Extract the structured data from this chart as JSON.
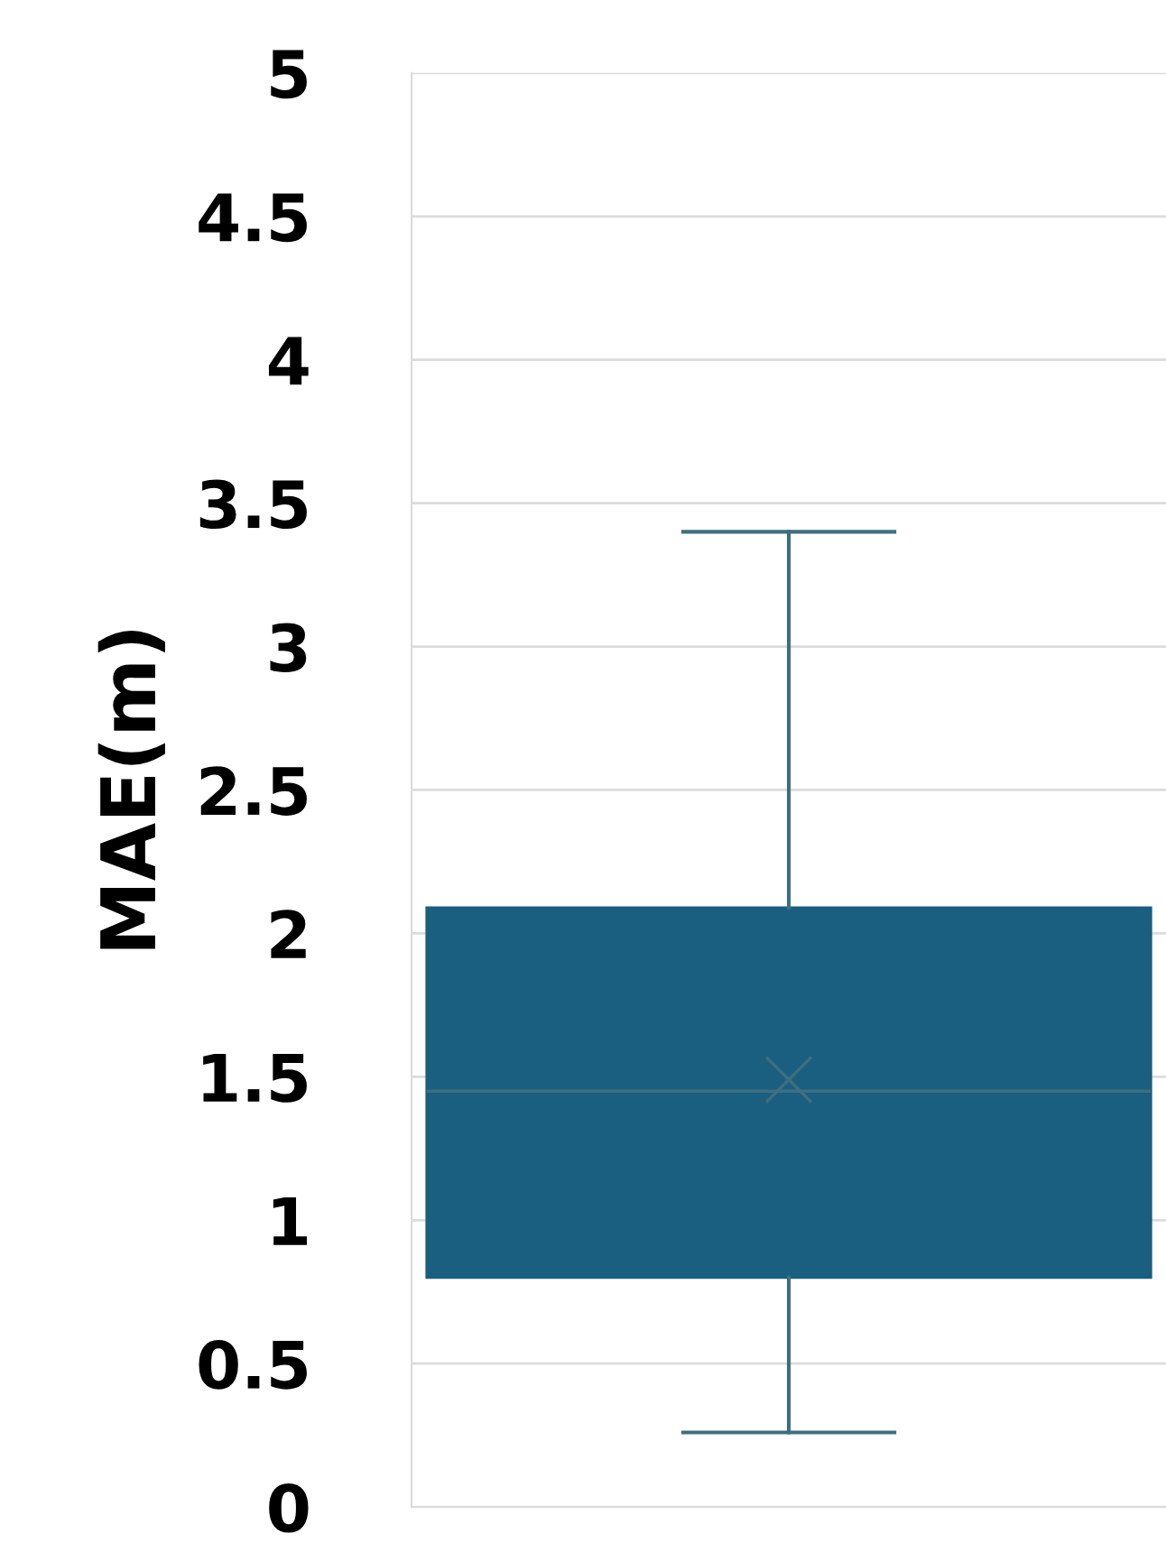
{
  "chart_data": {
    "type": "box",
    "ylabel": "MAE(m)",
    "categories": [
      null
    ],
    "ylim": [
      0,
      5
    ],
    "yticks": [
      0,
      0.5,
      1,
      1.5,
      2,
      2.5,
      3,
      3.5,
      4,
      4.5,
      5
    ],
    "grid": "y",
    "color": "#1a5e80",
    "boxes": [
      {
        "low": 0.26,
        "q1": 0.8,
        "median": 1.45,
        "q3": 2.09,
        "high": 3.4,
        "mean": 1.49
      }
    ]
  }
}
